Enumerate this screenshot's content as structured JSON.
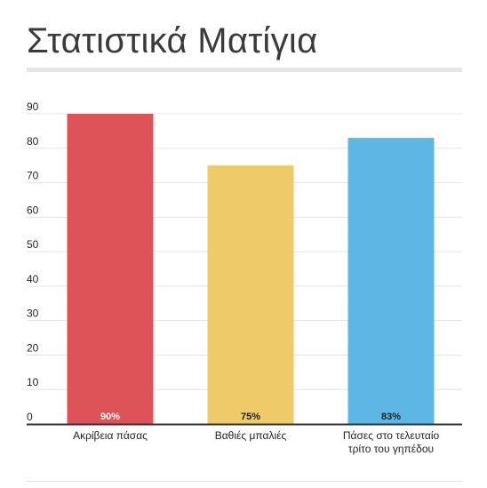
{
  "chart_data": {
    "type": "bar",
    "title": "Στατιστικά Ματίγια",
    "categories": [
      [
        "Ακρίβεια πάσας"
      ],
      [
        "Βαθιές μπαλιές"
      ],
      [
        "Πάσες στο τελευταίο",
        "τρίτο του γηπέδου"
      ]
    ],
    "values": [
      90,
      75,
      83
    ],
    "data_labels": [
      "90%",
      "75%",
      "83%"
    ],
    "colors": [
      "#dd5357",
      "#eecb68",
      "#5db6e4"
    ],
    "label_colors": [
      "#ffffff",
      "#222222",
      "#222222"
    ],
    "yticks": [
      "0",
      "10",
      "20",
      "30",
      "40",
      "50",
      "60",
      "70",
      "80",
      "90"
    ],
    "ylim": [
      0,
      90
    ],
    "grid": true,
    "legend": "none"
  }
}
